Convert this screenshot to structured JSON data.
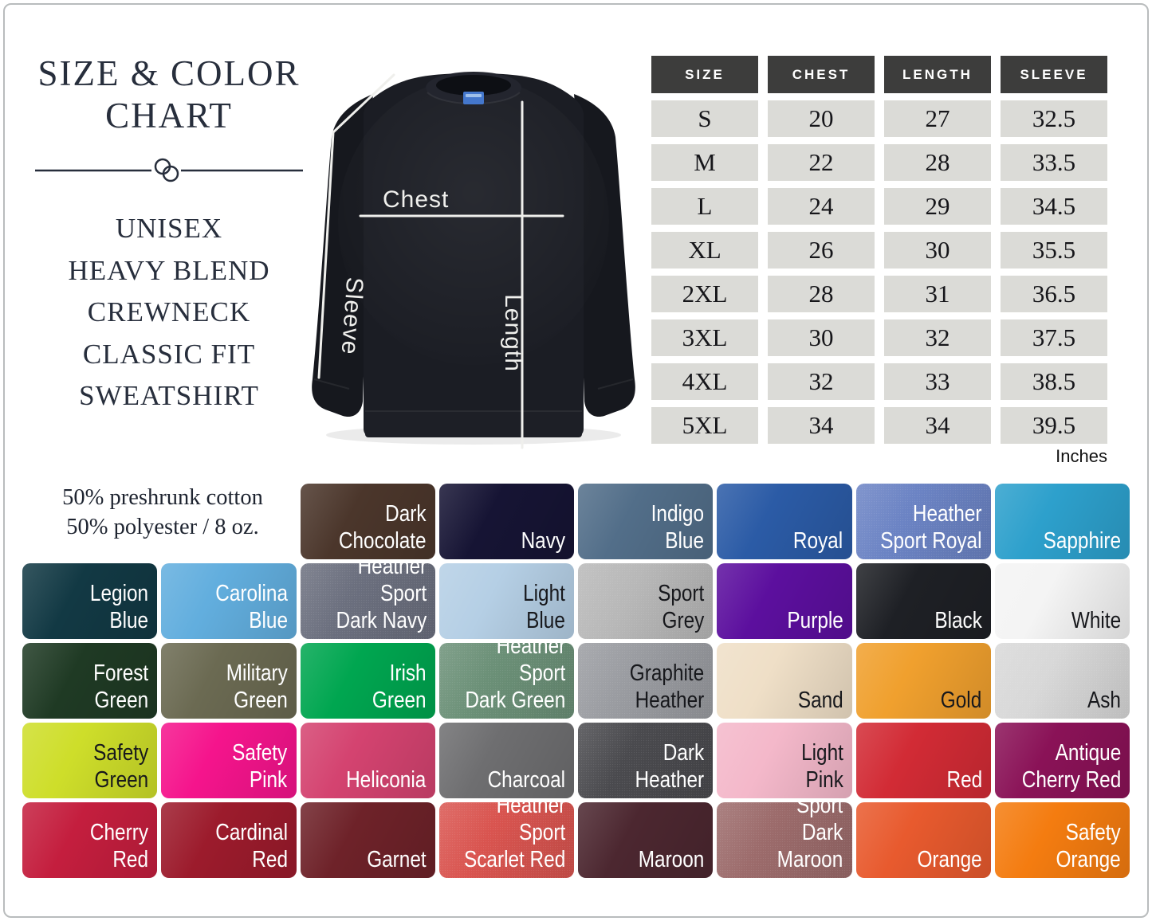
{
  "header_panel": {
    "title_lines": [
      "SIZE & COLOR",
      "CHART"
    ],
    "subtitle_lines": [
      "UNISEX",
      "HEAVY BLEND",
      "CREWNECK",
      "CLASSIC FIT",
      "SWEATSHIRT"
    ],
    "fabric_lines": [
      "50% preshrunk cotton",
      "50% polyester / 8 oz."
    ]
  },
  "diagram": {
    "chest_label": "Chest",
    "sleeve_label": "Sleeve",
    "length_label": "Length"
  },
  "size_table": {
    "headers": [
      "SIZE",
      "CHEST",
      "LENGTH",
      "SLEEVE"
    ],
    "rows": [
      [
        "S",
        "20",
        "27",
        "32.5"
      ],
      [
        "M",
        "22",
        "28",
        "33.5"
      ],
      [
        "L",
        "24",
        "29",
        "34.5"
      ],
      [
        "XL",
        "26",
        "30",
        "35.5"
      ],
      [
        "2XL",
        "28",
        "31",
        "36.5"
      ],
      [
        "3XL",
        "30",
        "32",
        "37.5"
      ],
      [
        "4XL",
        "32",
        "33",
        "38.5"
      ],
      [
        "5XL",
        "34",
        "34",
        "39.5"
      ]
    ],
    "units_note": "Inches",
    "header_bg": "#3d3d3c",
    "cell_bg": "#dbdbd7"
  },
  "color_chart": {
    "swatches": [
      {
        "name": "Dark Chocolate",
        "label": "Dark\nChocolate",
        "hex": "#4b362b",
        "text": "light",
        "col_start": 3
      },
      {
        "name": "Navy",
        "label": "Navy",
        "hex": "#161434",
        "text": "light"
      },
      {
        "name": "Indigo Blue",
        "label": "Indigo\nBlue",
        "hex": "#526e89",
        "text": "light"
      },
      {
        "name": "Royal",
        "label": "Royal",
        "hex": "#2b5ba6",
        "text": "light"
      },
      {
        "name": "Heather Sport Royal",
        "label": "Heather\nSport Royal",
        "hex": "#6b83c4",
        "text": "light",
        "heather": true
      },
      {
        "name": "Sapphire",
        "label": "Sapphire",
        "hex": "#2da0cc",
        "text": "light"
      },
      {
        "name": "Legion Blue",
        "label": "Legion\nBlue",
        "hex": "#123944",
        "text": "light"
      },
      {
        "name": "Carolina Blue",
        "label": "Carolina\nBlue",
        "hex": "#62aede",
        "text": "light"
      },
      {
        "name": "Heather Sport Dark Navy",
        "label": "Heather Sport\nDark Navy",
        "hex": "#6b6f7e",
        "text": "light",
        "heather": true
      },
      {
        "name": "Light Blue",
        "label": "Light\nBlue",
        "hex": "#b5cfe5",
        "text": "dark"
      },
      {
        "name": "Sport Grey",
        "label": "Sport\nGrey",
        "hex": "#b8b8b8",
        "text": "dark",
        "heather": true
      },
      {
        "name": "Purple",
        "label": "Purple",
        "hex": "#5c0f9e",
        "text": "light"
      },
      {
        "name": "Black",
        "label": "Black",
        "hex": "#1e2025",
        "text": "light"
      },
      {
        "name": "White",
        "label": "White",
        "hex": "#f4f4f4",
        "text": "dark"
      },
      {
        "name": "Forest Green",
        "label": "Forest\nGreen",
        "hex": "#1f3a24",
        "text": "light"
      },
      {
        "name": "Military Green",
        "label": "Military\nGreen",
        "hex": "#6b6a52",
        "text": "light"
      },
      {
        "name": "Irish Green",
        "label": "Irish\nGreen",
        "hex": "#00a650",
        "text": "light"
      },
      {
        "name": "Heather Sport Dark Green",
        "label": "Heather Sport\nDark Green",
        "hex": "#6b9077",
        "text": "light",
        "heather": true
      },
      {
        "name": "Graphite Heather",
        "label": "Graphite\nHeather",
        "hex": "#9a9ca1",
        "text": "dark",
        "heather": true
      },
      {
        "name": "Sand",
        "label": "Sand",
        "hex": "#efdfc7",
        "text": "dark"
      },
      {
        "name": "Gold",
        "label": "Gold",
        "hex": "#f0a02e",
        "text": "dark"
      },
      {
        "name": "Ash",
        "label": "Ash",
        "hex": "#d8d8d8",
        "text": "dark",
        "heather": true
      },
      {
        "name": "Safety Green",
        "label": "Safety\nGreen",
        "hex": "#cede2a",
        "text": "dark"
      },
      {
        "name": "Safety Pink",
        "label": "Safety\nPink",
        "hex": "#f5148c",
        "text": "light"
      },
      {
        "name": "Heliconia",
        "label": "Heliconia",
        "hex": "#d44370",
        "text": "light"
      },
      {
        "name": "Charcoal",
        "label": "Charcoal",
        "hex": "#6e6e70",
        "text": "light"
      },
      {
        "name": "Dark Heather",
        "label": "Dark\nHeather",
        "hex": "#4a4a4e",
        "text": "light",
        "heather": true
      },
      {
        "name": "Light Pink",
        "label": "Light\nPink",
        "hex": "#f4b8ca",
        "text": "dark"
      },
      {
        "name": "Red",
        "label": "Red",
        "hex": "#d22b35",
        "text": "light"
      },
      {
        "name": "Antique Cherry Red",
        "label": "Antique\nCherry Red",
        "hex": "#8a1257",
        "text": "light"
      },
      {
        "name": "Cherry Red",
        "label": "Cherry\nRed",
        "hex": "#c41e3e",
        "text": "light"
      },
      {
        "name": "Cardinal Red",
        "label": "Cardinal\nRed",
        "hex": "#9c1b2c",
        "text": "light"
      },
      {
        "name": "Garnet",
        "label": "Garnet",
        "hex": "#6e2229",
        "text": "light"
      },
      {
        "name": "Heather Sport Scarlet Red",
        "label": "Heather Sport\nScarlet Red",
        "hex": "#d9544f",
        "text": "light",
        "heather": true
      },
      {
        "name": "Maroon",
        "label": "Maroon",
        "hex": "#4c2730",
        "text": "light"
      },
      {
        "name": "Heather Sport Dark Maroon",
        "label": "Heather Sport\nDark Maroon",
        "hex": "#9c6b6b",
        "text": "light",
        "heather": true
      },
      {
        "name": "Orange",
        "label": "Orange",
        "hex": "#e85a2e",
        "text": "light"
      },
      {
        "name": "Safety Orange",
        "label": "Safety\nOrange",
        "hex": "#f47c10",
        "text": "light"
      }
    ]
  }
}
